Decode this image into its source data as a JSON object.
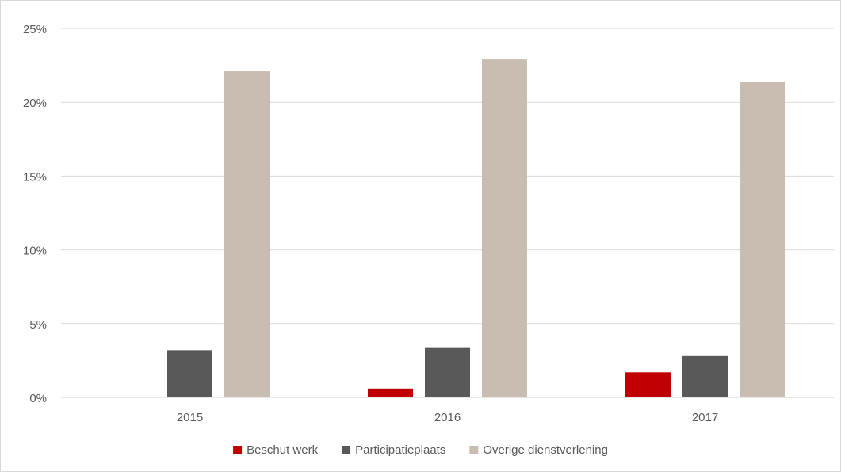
{
  "chart_data": {
    "type": "bar",
    "title": "",
    "xlabel": "",
    "ylabel": "",
    "categories": [
      "2015",
      "2016",
      "2017"
    ],
    "ylim": [
      0,
      25
    ],
    "yticks": [
      0,
      5,
      10,
      15,
      20,
      25
    ],
    "ytick_labels": [
      "0%",
      "5%",
      "10%",
      "15%",
      "20%",
      "25%"
    ],
    "grid": true,
    "legend_position": "bottom",
    "series": [
      {
        "name": "Beschut werk",
        "color": "#c00000",
        "values": [
          0,
          0.6,
          1.7
        ]
      },
      {
        "name": "Participatieplaats",
        "color": "#595959",
        "values": [
          3.2,
          3.4,
          2.8
        ]
      },
      {
        "name": "Overige dienstverlening",
        "color": "#c9bcb0",
        "values": [
          22.1,
          22.9,
          21.4
        ]
      }
    ]
  }
}
